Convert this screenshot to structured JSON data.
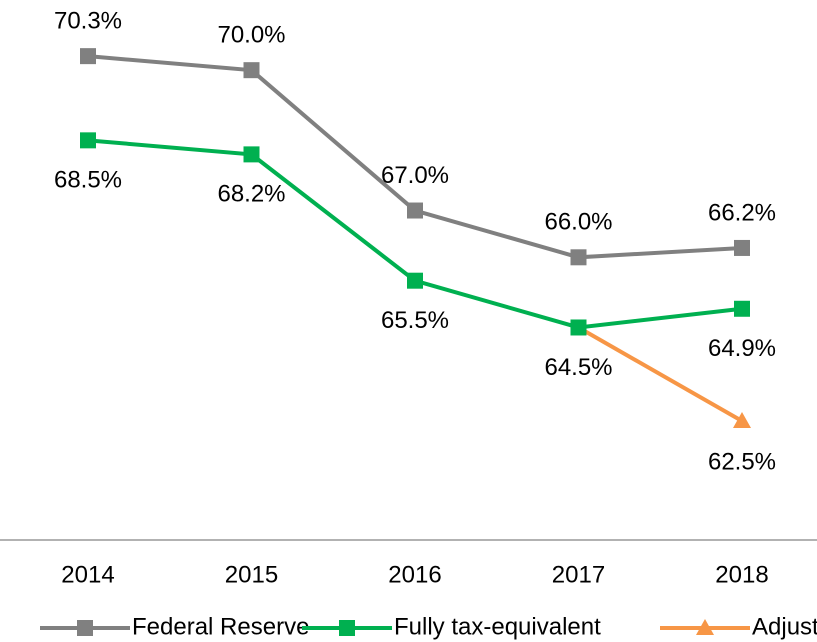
{
  "chart_data": {
    "type": "line",
    "categories": [
      "2014",
      "2015",
      "2016",
      "2017",
      "2018"
    ],
    "series": [
      {
        "name": "Federal Reserve",
        "color": "#808080",
        "marker": "square",
        "values": [
          70.3,
          70.0,
          67.0,
          66.0,
          66.2
        ],
        "value_labels": [
          "70.3%",
          "70.0%",
          "67.0%",
          "66.0%",
          "66.2%"
        ]
      },
      {
        "name": "Fully tax-equivalent",
        "color": "#00b050",
        "marker": "square",
        "values": [
          68.5,
          68.2,
          65.5,
          64.5,
          64.9
        ],
        "value_labels": [
          "68.5%",
          "68.2%",
          "65.5%",
          "64.5%",
          "64.9%"
        ]
      },
      {
        "name": "Adjusted",
        "color": "#f79646",
        "marker": "triangle",
        "values": [
          null,
          null,
          null,
          64.5,
          62.5
        ],
        "value_labels": [
          null,
          null,
          null,
          null,
          "62.5%"
        ]
      }
    ],
    "ylim": [
      60,
      71.5
    ],
    "legend": "bottom"
  }
}
